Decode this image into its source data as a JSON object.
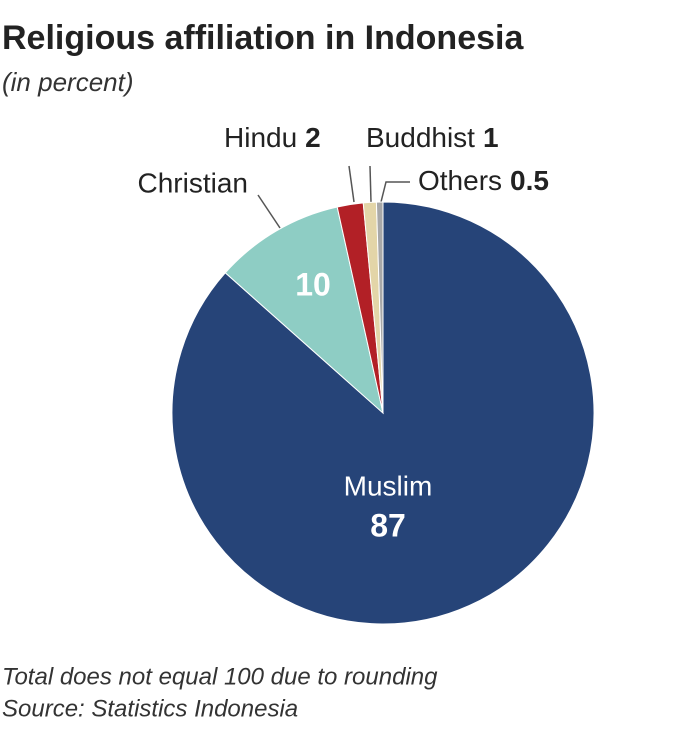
{
  "chart_data": {
    "type": "pie",
    "title": "Religious affiliation in Indonesia",
    "subtitle": "(in percent)",
    "categories": [
      "Muslim",
      "Christian",
      "Hindu",
      "Buddhist",
      "Others"
    ],
    "values": [
      87,
      10,
      2,
      1,
      0.5
    ],
    "colors": [
      "#264478",
      "#8ecdc4",
      "#b22026",
      "#e3d5a8",
      "#a8a8a8"
    ],
    "notes": [
      "Total does not equal 100 due to rounding",
      "Source: Statistics Indonesia"
    ]
  }
}
